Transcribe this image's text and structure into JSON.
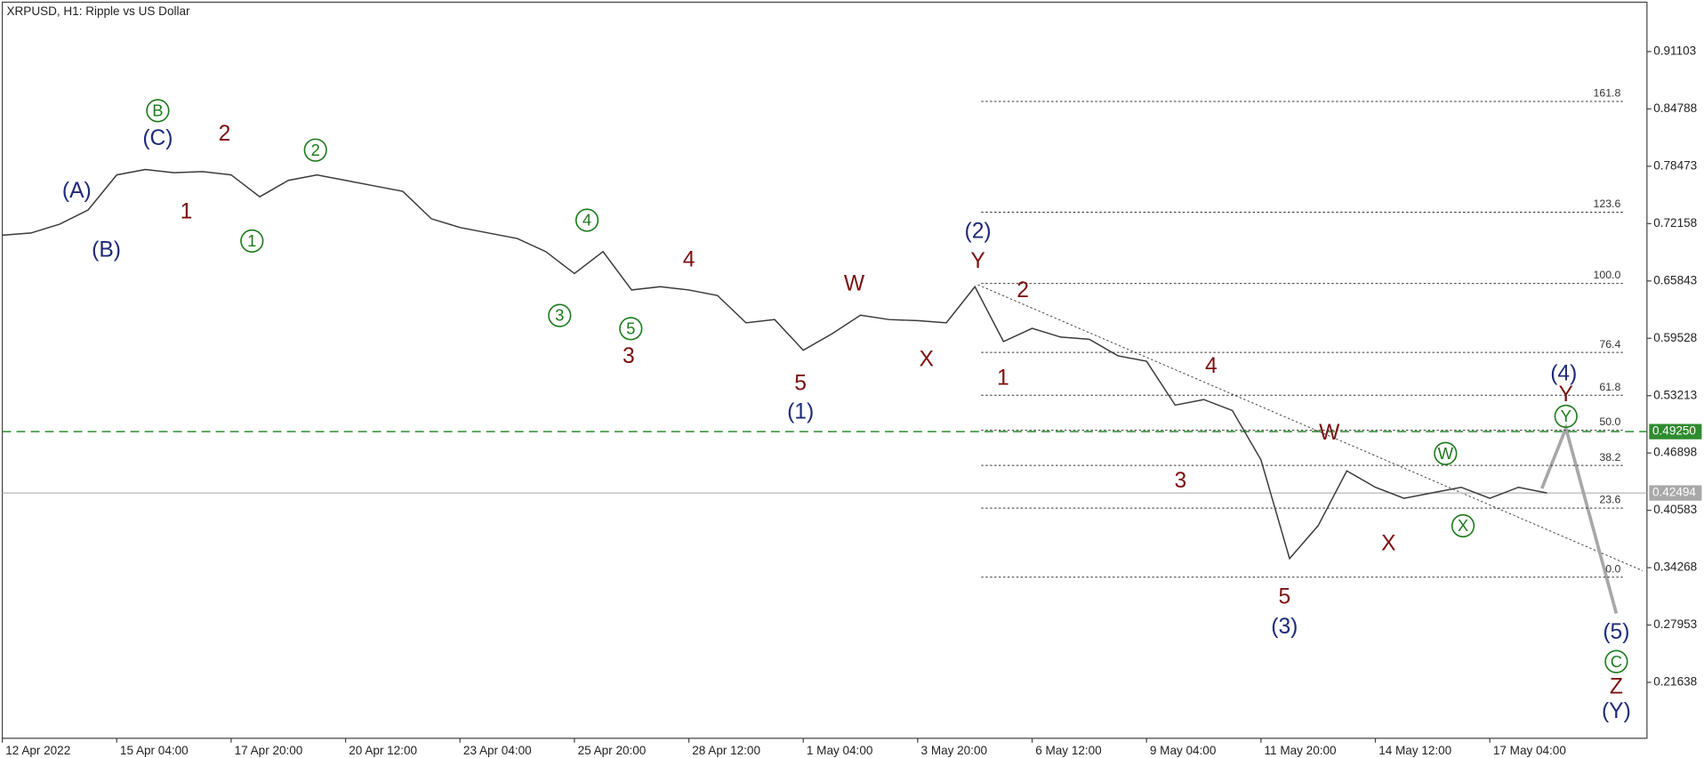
{
  "chart_data": {
    "type": "line",
    "title": "XRPUSD, H1:  Ripple vs US Dollar",
    "categories": [
      "12 Apr 2022",
      null,
      null,
      null,
      "15 Apr 04:00",
      null,
      null,
      null,
      "17 Apr 20:00",
      null,
      null,
      null,
      "20 Apr 12:00",
      null,
      null,
      null,
      "23 Apr 04:00",
      null,
      null,
      null,
      "25 Apr 20:00",
      null,
      null,
      null,
      "28 Apr 12:00",
      null,
      null,
      null,
      "1 May 04:00",
      null,
      null,
      null,
      "3 May 20:00",
      null,
      null,
      null,
      "6 May 12:00",
      null,
      null,
      null,
      "9 May 04:00",
      null,
      null,
      null,
      "11 May 20:00",
      null,
      null,
      null,
      "14 May 12:00",
      null,
      null,
      null,
      "17 May 04:00",
      null,
      null
    ],
    "values": [
      0.7088,
      0.7112,
      0.7209,
      0.7366,
      0.7752,
      0.7812,
      0.7776,
      0.7788,
      0.7752,
      0.7511,
      0.7692,
      0.7752,
      0.7692,
      0.7631,
      0.7571,
      0.7269,
      0.7173,
      0.7112,
      0.7052,
      0.6907,
      0.6666,
      0.6907,
      0.6485,
      0.6521,
      0.6485,
      0.6424,
      0.6123,
      0.6159,
      0.5821,
      0.6002,
      0.6207,
      0.6159,
      0.6147,
      0.6123,
      0.6521,
      0.5917,
      0.6062,
      0.5966,
      0.5942,
      0.576,
      0.57,
      0.5217,
      0.5278,
      0.5157,
      0.4614,
      0.3527,
      0.389,
      0.4493,
      0.4312,
      0.4191,
      0.4252,
      0.4312,
      0.4191,
      0.4312,
      0.4249
    ],
    "color": "#3a3a3a",
    "ylim": [
      0.1548,
      0.9654
    ],
    "yticks": [
      0.91103,
      0.84788,
      0.78473,
      0.72158,
      0.65843,
      0.59528,
      0.53213,
      0.46898,
      0.40583,
      0.34268,
      0.27953,
      0.21638
    ],
    "fib_levels": [
      {
        "value": 0.8561,
        "label": "161.8"
      },
      {
        "value": 0.7342,
        "label": "123.6"
      },
      {
        "value": 0.6557,
        "label": "100.0"
      },
      {
        "value": 0.5797,
        "label": "76.4"
      },
      {
        "value": 0.5326,
        "label": "61.8"
      },
      {
        "value": 0.494,
        "label": "50.0"
      },
      {
        "value": 0.4553,
        "label": "38.2"
      },
      {
        "value": 0.4083,
        "label": "23.6"
      },
      {
        "value": 0.3322,
        "label": "0.0"
      }
    ],
    "price_lines": [
      {
        "value": 0.4925,
        "label": "0.49250",
        "color": "#2e8b2e",
        "dashed": true
      },
      {
        "value": 0.42494,
        "label": "0.42494",
        "color": "#a8a8a8",
        "dashed": false
      }
    ],
    "annotations": [
      {
        "text": "(A)",
        "color": "#1f2a7a",
        "circled": false
      },
      {
        "text": "(B)",
        "color": "#1f2a7a",
        "circled": false
      },
      {
        "text": "B",
        "color": "#1b7a1b",
        "circled": true
      },
      {
        "text": "(C)",
        "color": "#1f2a7a",
        "circled": false
      },
      {
        "text": "2",
        "color": "#7b1010",
        "circled": false
      },
      {
        "text": "1",
        "color": "#7b1010",
        "circled": false
      },
      {
        "text": "1",
        "color": "#1b7a1b",
        "circled": true
      },
      {
        "text": "2",
        "color": "#1b7a1b",
        "circled": true
      },
      {
        "text": "3",
        "color": "#1b7a1b",
        "circled": true
      },
      {
        "text": "4",
        "color": "#1b7a1b",
        "circled": true
      },
      {
        "text": "5",
        "color": "#1b7a1b",
        "circled": true
      },
      {
        "text": "3",
        "color": "#7b1010",
        "circled": false
      },
      {
        "text": "4",
        "color": "#7b1010",
        "circled": false
      },
      {
        "text": "5",
        "color": "#7b1010",
        "circled": false
      },
      {
        "text": "(1)",
        "color": "#1f2a7a",
        "circled": false
      },
      {
        "text": "W",
        "color": "#7b1010",
        "circled": false
      },
      {
        "text": "X",
        "color": "#7b1010",
        "circled": false
      },
      {
        "text": "(2)",
        "color": "#1f2a7a",
        "circled": false
      },
      {
        "text": "Y",
        "color": "#7b1010",
        "circled": false
      },
      {
        "text": "2",
        "color": "#7b1010",
        "circled": false
      },
      {
        "text": "1",
        "color": "#7b1010",
        "circled": false
      },
      {
        "text": "4",
        "color": "#7b1010",
        "circled": false
      },
      {
        "text": "3",
        "color": "#7b1010",
        "circled": false
      },
      {
        "text": "W",
        "color": "#7b1010",
        "circled": false
      },
      {
        "text": "5",
        "color": "#7b1010",
        "circled": false
      },
      {
        "text": "(3)",
        "color": "#1f2a7a",
        "circled": false
      },
      {
        "text": "X",
        "color": "#7b1010",
        "circled": false
      },
      {
        "text": "W",
        "color": "#1b7a1b",
        "circled": true
      },
      {
        "text": "X",
        "color": "#1b7a1b",
        "circled": true
      },
      {
        "text": "(4)",
        "color": "#1f2a7a",
        "circled": false
      },
      {
        "text": "Y",
        "color": "#7b1010",
        "circled": false
      },
      {
        "text": "Y",
        "color": "#1b7a1b",
        "circled": true
      },
      {
        "text": "(5)",
        "color": "#1f2a7a",
        "circled": false
      },
      {
        "text": "C",
        "color": "#1b7a1b",
        "circled": true
      },
      {
        "text": "Z",
        "color": "#7b1010",
        "circled": false
      },
      {
        "text": "(Y)",
        "color": "#1f2a7a",
        "circled": false
      }
    ]
  }
}
